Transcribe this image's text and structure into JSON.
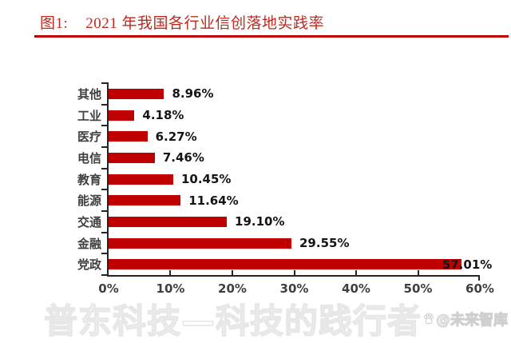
{
  "figure": {
    "label": "图1:",
    "title": "2021 年我国各行业信创落地实践率"
  },
  "chart_data": {
    "type": "bar",
    "orientation": "horizontal",
    "title": "2021 年我国各行业信创落地实践率",
    "categories": [
      "其他",
      "工业",
      "医疗",
      "电信",
      "教育",
      "能源",
      "交通",
      "金融",
      "党政"
    ],
    "values": [
      8.96,
      4.18,
      6.27,
      7.46,
      10.45,
      11.64,
      19.1,
      29.55,
      57.01
    ],
    "value_labels": [
      "8.96%",
      "4.18%",
      "6.27%",
      "7.46%",
      "10.45%",
      "11.64%",
      "19.10%",
      "29.55%",
      "57.01%"
    ],
    "x_ticks": [
      "0%",
      "10%",
      "20%",
      "30%",
      "40%",
      "50%",
      "60%"
    ],
    "xlim": [
      0,
      60
    ],
    "xlabel": "",
    "ylabel": "",
    "grid": false,
    "legend": false,
    "bar_color": "#c00000"
  },
  "watermark": {
    "main": "普东科技—科技的践行者",
    "credit": "@未来智库",
    "credit_icon": "baidu-paw-icon"
  },
  "colors": {
    "accent_red": "#c00000",
    "axis": "#262626",
    "label_gray": "#3f3f3f",
    "value_black": "#151515"
  }
}
